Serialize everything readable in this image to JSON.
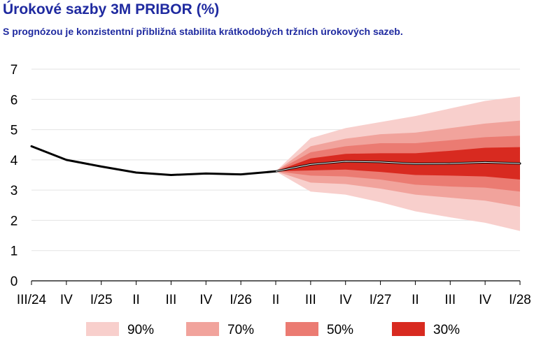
{
  "header": {
    "title": "Úrokové sazby 3M PRIBOR (%)",
    "subtitle": "S prognózou je konzistentní přibližná stabilita krátkodobých tržních úrokových sazeb."
  },
  "chart_data": {
    "type": "area",
    "title": "Úrokové sazby 3M PRIBOR (%)",
    "subtitle": "S prognózou je konzistentní přibližná stabilita krátkodobých tržních úrokových sazeb.",
    "categories": [
      "III/24",
      "IV",
      "I/25",
      "II",
      "III",
      "IV",
      "I/26",
      "II",
      "III",
      "IV",
      "I/27",
      "II",
      "III",
      "IV",
      "I/28"
    ],
    "ylim": [
      0,
      7
    ],
    "yticks": [
      0,
      1,
      2,
      3,
      4,
      5,
      6,
      7
    ],
    "grid": true,
    "legend_position": "bottom",
    "series": [
      {
        "values": [
          4.45,
          4.0,
          3.78,
          3.58,
          3.5,
          3.55,
          3.52,
          3.62,
          3.85,
          3.95,
          3.93,
          3.87,
          3.88,
          3.92,
          3.88
        ]
      }
    ],
    "fan_start_index": 7,
    "bands": [
      {
        "name": "90%",
        "color": "#f8cfcc",
        "lower": [
          3.62,
          2.95,
          2.85,
          2.6,
          2.3,
          2.1,
          1.92,
          1.65
        ],
        "upper": [
          3.62,
          4.72,
          5.05,
          5.25,
          5.45,
          5.7,
          5.95,
          6.1
        ]
      },
      {
        "name": "70%",
        "color": "#f1a39c",
        "lower": [
          3.62,
          3.25,
          3.2,
          3.05,
          2.85,
          2.75,
          2.65,
          2.45
        ],
        "upper": [
          3.62,
          4.45,
          4.7,
          4.85,
          4.9,
          5.05,
          5.2,
          5.3
        ]
      },
      {
        "name": "50%",
        "color": "#eb7b72",
        "lower": [
          3.62,
          3.48,
          3.45,
          3.35,
          3.18,
          3.12,
          3.08,
          2.95
        ],
        "upper": [
          3.62,
          4.25,
          4.45,
          4.55,
          4.55,
          4.65,
          4.75,
          4.8
        ]
      },
      {
        "name": "30%",
        "color": "#d82a20",
        "lower": [
          3.62,
          3.65,
          3.68,
          3.6,
          3.5,
          3.48,
          3.45,
          3.35
        ],
        "upper": [
          3.62,
          4.05,
          4.2,
          4.22,
          4.22,
          4.3,
          4.4,
          4.42
        ]
      }
    ],
    "line_color": "#000000",
    "center_line_color": "#ffffff"
  }
}
